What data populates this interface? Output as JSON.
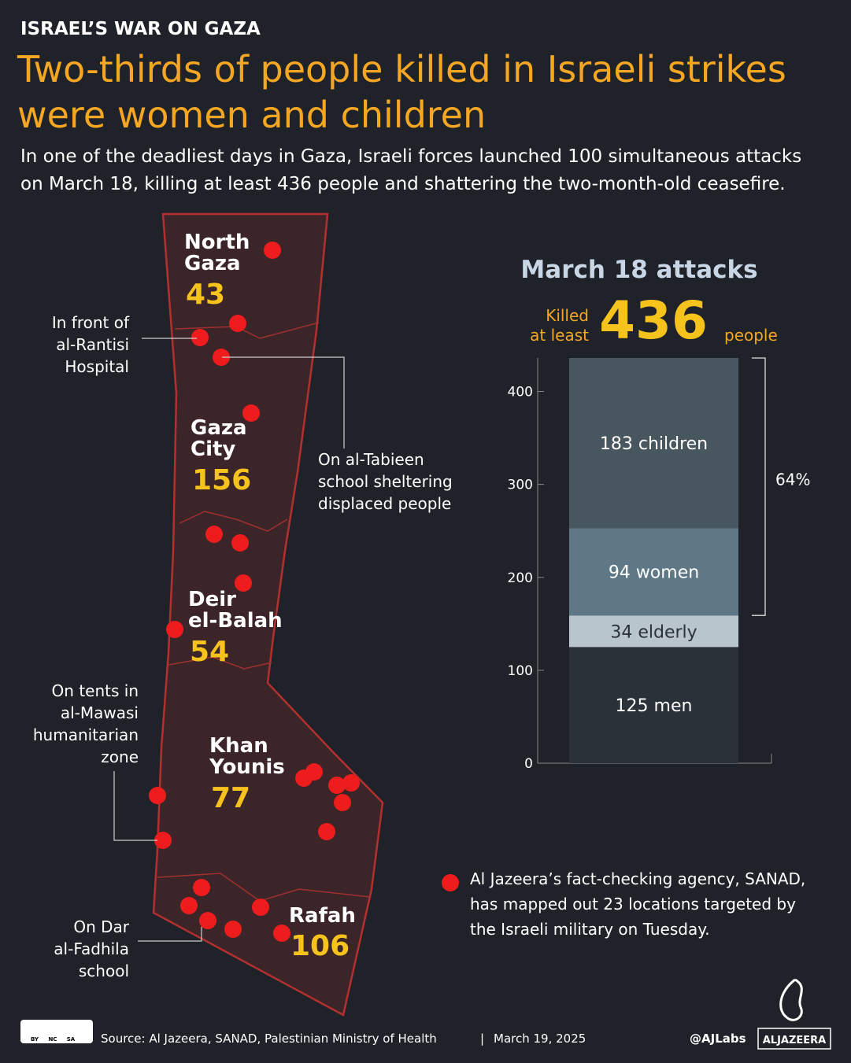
{
  "header": {
    "kicker": "ISRAEL’S WAR ON GAZA",
    "title_lines": [
      "Two-thirds of people killed in Israeli strikes",
      "were women and children"
    ],
    "subtitle_lines": [
      "In one of the deadliest days in Gaza, Israeli forces launched 100 simultaneous attacks",
      "on March 18, killing at least 436 people and shattering the two-month-old ceasefire."
    ]
  },
  "map": {
    "regions": [
      {
        "name": "North Gaza",
        "value": 43
      },
      {
        "name": "Gaza City",
        "value": 156
      },
      {
        "name": "Deir el-Balah",
        "value": 54
      },
      {
        "name": "Khan Younis",
        "value": 77
      },
      {
        "name": "Rafah",
        "value": 106
      }
    ],
    "annotations": [
      {
        "lines": [
          "In front of",
          "al-Rantisi",
          "Hospital"
        ]
      },
      {
        "lines": [
          "On al-Tabieen",
          "school sheltering",
          "displaced people"
        ]
      },
      {
        "lines": [
          "On tents in",
          "al-Mawasi",
          "humanitarian",
          "zone"
        ]
      },
      {
        "lines": [
          "On Dar",
          "al-Fadhila",
          "school"
        ]
      }
    ],
    "note_lines": [
      "Al Jazeera’s fact-checking agency, SANAD,",
      "has mapped out 23 locations targeted by",
      "the Israeli military on Tuesday."
    ]
  },
  "chart_data": {
    "type": "stacked_bar",
    "title": "March 18 attacks",
    "total_prefix_lines": [
      "Killed",
      "at least"
    ],
    "total": 436,
    "total_suffix": "people",
    "series": [
      {
        "name": "men",
        "color": "#2b3139",
        "values": [
          125
        ]
      },
      {
        "name": "elderly",
        "color": "#b9c5cc",
        "values": [
          34
        ]
      },
      {
        "name": "women",
        "color": "#5e7886",
        "values": [
          94
        ]
      },
      {
        "name": "children",
        "color": "#48575f",
        "values": [
          183
        ]
      }
    ],
    "bracket_label": "64%",
    "ylim": [
      0,
      436
    ],
    "yticks": [
      0,
      100,
      200,
      300,
      400
    ]
  },
  "footer": {
    "license": [
      "BY",
      "NC",
      "SA"
    ],
    "source": "Source:  Al Jazeera, SANAD, Palestinian Ministry of Health",
    "separator": "|",
    "date": "March 19, 2025",
    "handle": "@AJLabs",
    "logo": "ALJAZEERA"
  }
}
